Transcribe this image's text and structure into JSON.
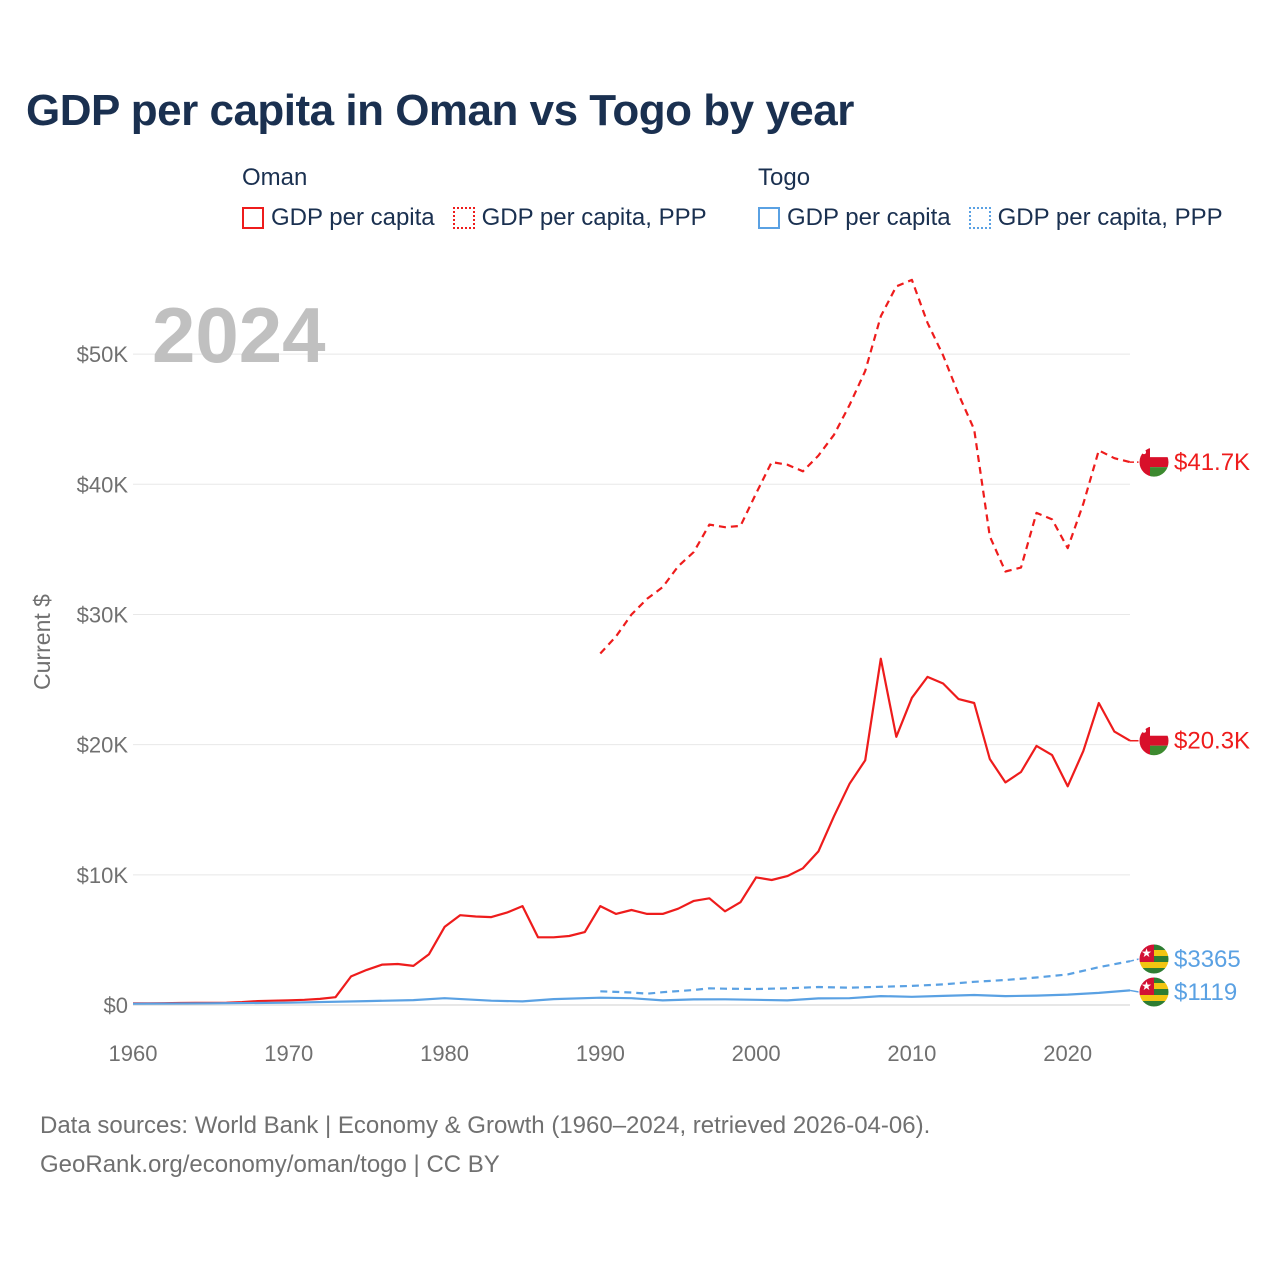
{
  "title": "GDP per capita in Oman vs Togo by year",
  "legend": {
    "oman": {
      "country": "Oman",
      "gdp_label": "GDP per capita",
      "ppp_label": "GDP per capita, PPP"
    },
    "togo": {
      "country": "Togo",
      "gdp_label": "GDP per capita",
      "ppp_label": "GDP per capita, PPP"
    }
  },
  "colors": {
    "oman": "#ee1c1c",
    "togo": "#5aa1e3",
    "year": "#c0c0c0",
    "axis_text": "#707070",
    "grid": "#e8e8e8"
  },
  "chart_data": {
    "type": "line",
    "year_label": "2024",
    "ylabel": "Current $",
    "xlim": [
      1960,
      2024
    ],
    "ylim": [
      0,
      55000
    ],
    "x_ticks": [
      1960,
      1970,
      1980,
      1990,
      2000,
      2010,
      2020
    ],
    "x_tick_labels": [
      "1960",
      "1970",
      "1980",
      "1990",
      "2000",
      "2010",
      "2020"
    ],
    "y_ticks": [
      0,
      10000,
      20000,
      30000,
      40000,
      50000
    ],
    "y_tick_labels": [
      "$0",
      "$10K",
      "$20K",
      "$30K",
      "$40K",
      "$50K"
    ],
    "series": [
      {
        "name": "Oman GDP per capita",
        "country": "oman",
        "dash": "solid",
        "end_label": "$20.3K",
        "x": [
          1960,
          1961,
          1962,
          1963,
          1964,
          1965,
          1966,
          1967,
          1968,
          1969,
          1970,
          1971,
          1972,
          1973,
          1974,
          1975,
          1976,
          1977,
          1978,
          1979,
          1980,
          1981,
          1982,
          1983,
          1984,
          1985,
          1986,
          1987,
          1988,
          1989,
          1990,
          1991,
          1992,
          1993,
          1994,
          1995,
          1996,
          1997,
          1998,
          1999,
          2000,
          2001,
          2002,
          2003,
          2004,
          2005,
          2006,
          2007,
          2008,
          2009,
          2010,
          2011,
          2012,
          2013,
          2014,
          2015,
          2016,
          2017,
          2018,
          2019,
          2020,
          2021,
          2022,
          2023,
          2024
        ],
        "values": [
          120,
          130,
          140,
          150,
          160,
          170,
          180,
          220,
          300,
          330,
          360,
          400,
          470,
          600,
          2200,
          2700,
          3100,
          3150,
          3000,
          3900,
          6000,
          6900,
          6800,
          6750,
          7100,
          7600,
          5200,
          5200,
          5300,
          5600,
          7600,
          7000,
          7300,
          7000,
          7000,
          7400,
          8000,
          8200,
          7200,
          7900,
          9800,
          9600,
          9900,
          10500,
          11800,
          14500,
          17000,
          18800,
          26600,
          20600,
          23600,
          25200,
          24700,
          23500,
          23200,
          18900,
          17100,
          17900,
          19900,
          19200,
          16800,
          19500,
          23200,
          21000,
          20300
        ]
      },
      {
        "name": "Oman GDP per capita, PPP",
        "country": "oman",
        "dash": "dashed",
        "end_label": "$41.7K",
        "x": [
          1990,
          1991,
          1992,
          1993,
          1994,
          1995,
          1996,
          1997,
          1998,
          1999,
          2000,
          2001,
          2002,
          2003,
          2004,
          2005,
          2006,
          2007,
          2008,
          2009,
          2010,
          2011,
          2012,
          2013,
          2014,
          2015,
          2016,
          2017,
          2018,
          2019,
          2020,
          2021,
          2022,
          2023,
          2024
        ],
        "values": [
          27000,
          28300,
          30000,
          31200,
          32100,
          33700,
          34800,
          36900,
          36700,
          36800,
          39300,
          41700,
          41500,
          41000,
          42200,
          43800,
          46100,
          48700,
          52900,
          55200,
          55700,
          52400,
          49900,
          46900,
          44200,
          36000,
          33300,
          33600,
          37800,
          37300,
          35100,
          38500,
          42600,
          42000,
          41700
        ]
      },
      {
        "name": "Togo GDP per capita",
        "country": "togo",
        "dash": "solid",
        "end_label": "$1119",
        "x": [
          1960,
          1965,
          1970,
          1975,
          1978,
          1980,
          1983,
          1985,
          1987,
          1990,
          1992,
          1994,
          1996,
          1998,
          2000,
          2002,
          2004,
          2006,
          2008,
          2010,
          2012,
          2014,
          2016,
          2018,
          2020,
          2022,
          2024
        ],
        "values": [
          100,
          130,
          180,
          300,
          380,
          520,
          330,
          280,
          450,
          560,
          520,
          350,
          430,
          440,
          400,
          350,
          510,
          520,
          680,
          630,
          700,
          770,
          680,
          720,
          800,
          930,
          1119
        ]
      },
      {
        "name": "Togo GDP per capita, PPP",
        "country": "togo",
        "dash": "dashed",
        "end_label": "$3365",
        "x": [
          1990,
          1992,
          1993,
          1994,
          1996,
          1997,
          1998,
          2000,
          2002,
          2004,
          2006,
          2008,
          2010,
          2012,
          2014,
          2016,
          2018,
          2020,
          2022,
          2024
        ],
        "values": [
          1050,
          960,
          870,
          980,
          1150,
          1280,
          1250,
          1230,
          1280,
          1380,
          1330,
          1400,
          1470,
          1580,
          1780,
          1920,
          2110,
          2350,
          2900,
          3365
        ]
      }
    ]
  },
  "footer": {
    "line1": "Data sources: World Bank | Economy & Growth (1960–2024, retrieved 2026-04-06).",
    "line2": "GeoRank.org/economy/oman/togo | CC BY"
  }
}
